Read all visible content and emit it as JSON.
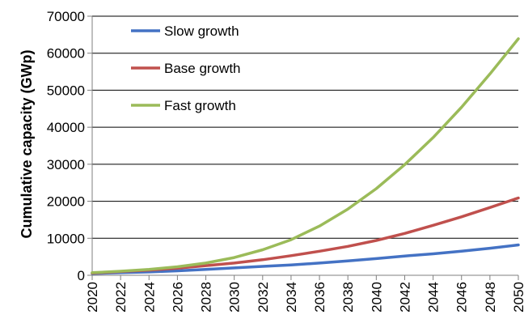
{
  "chart_data": {
    "type": "line",
    "title": "",
    "xlabel": "",
    "ylabel": "Cumulative capacity  (GWp)",
    "ylim": [
      0,
      70000
    ],
    "yticks": [
      0,
      10000,
      20000,
      30000,
      40000,
      50000,
      60000,
      70000
    ],
    "xticks": [
      2020,
      2022,
      2024,
      2026,
      2028,
      2030,
      2032,
      2034,
      2036,
      2038,
      2040,
      2042,
      2044,
      2046,
      2048,
      2050
    ],
    "xlim": [
      2020,
      2050
    ],
    "grid": "horizontal",
    "legend_position": "top-left",
    "x": [
      2020,
      2022,
      2024,
      2026,
      2028,
      2030,
      2032,
      2034,
      2036,
      2038,
      2040,
      2042,
      2044,
      2046,
      2048,
      2050
    ],
    "series": [
      {
        "name": "Slow growth",
        "color": "#4472C4",
        "values": [
          500,
          700,
          900,
          1200,
          1600,
          2000,
          2400,
          2800,
          3300,
          3900,
          4500,
          5200,
          5800,
          6500,
          7300,
          8200
        ]
      },
      {
        "name": "Base growth",
        "color": "#C0504D",
        "values": [
          600,
          1000,
          1400,
          1900,
          2600,
          3300,
          4200,
          5300,
          6500,
          7800,
          9400,
          11300,
          13500,
          15800,
          18300,
          20900
        ]
      },
      {
        "name": "Fast growth",
        "color": "#9BBB59",
        "values": [
          700,
          1100,
          1600,
          2300,
          3300,
          4800,
          6900,
          9600,
          13300,
          17900,
          23400,
          29900,
          37200,
          45400,
          54400,
          63900
        ]
      }
    ]
  }
}
